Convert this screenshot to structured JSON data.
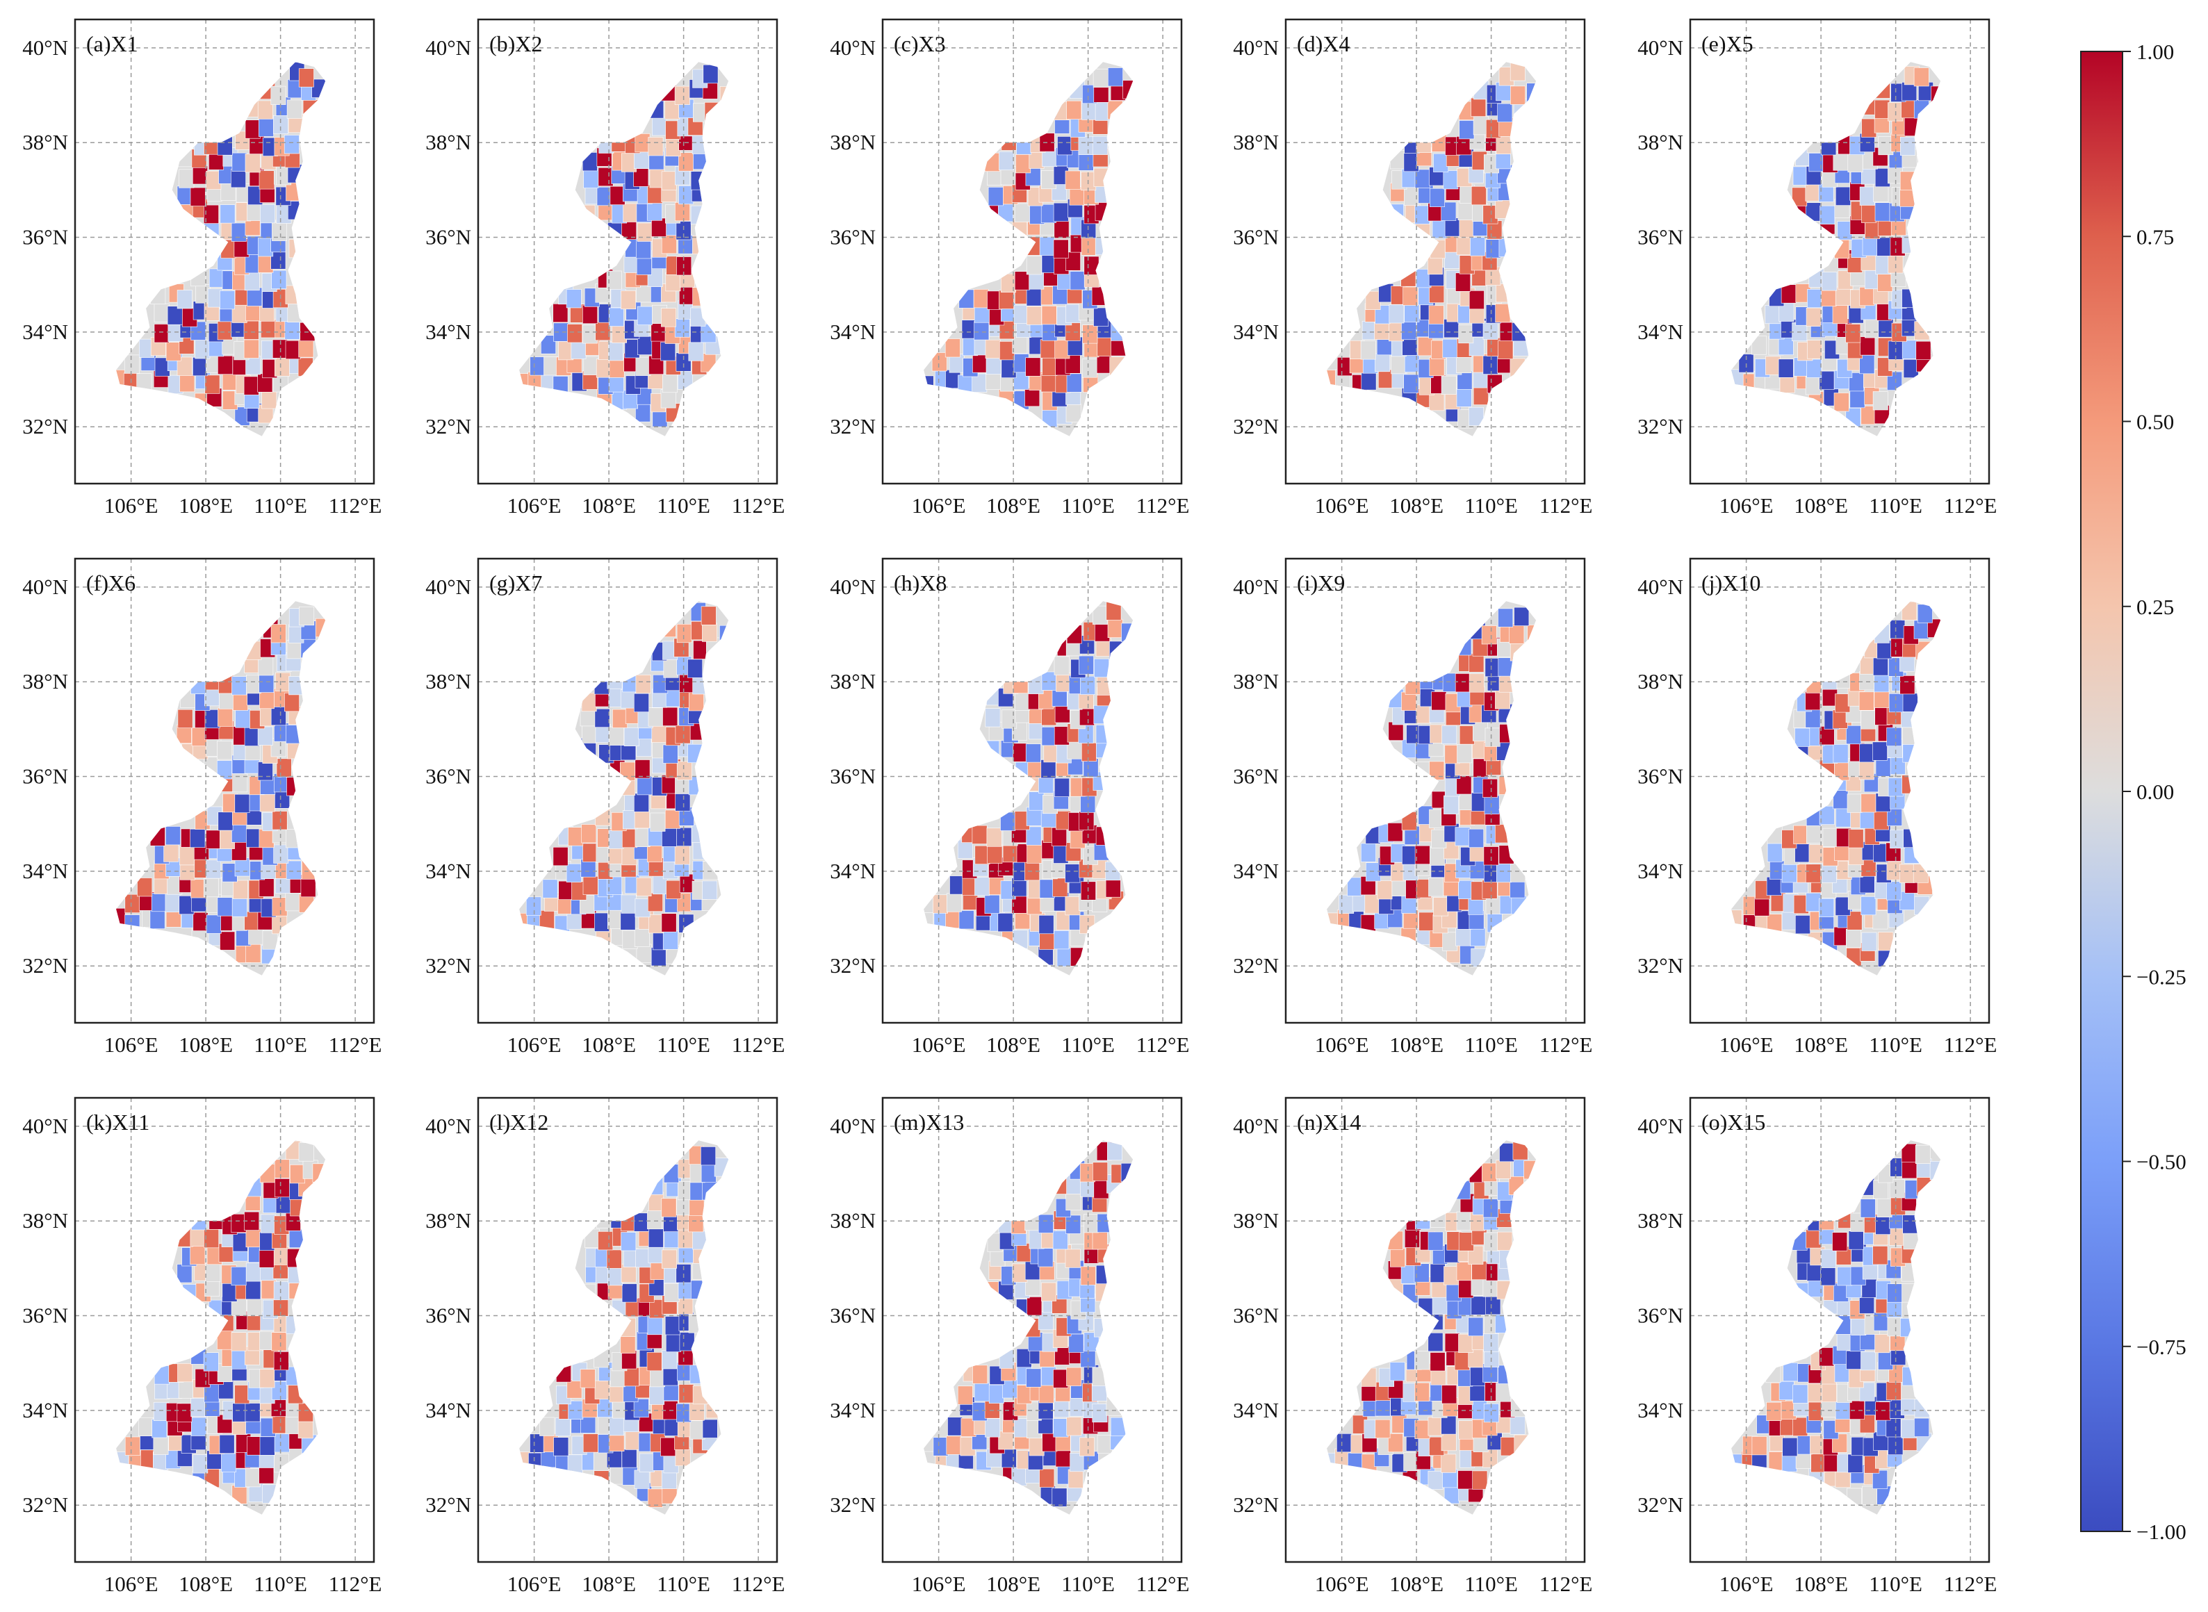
{
  "figure": {
    "panels": [
      {
        "label": "(a)X1",
        "seed": 11
      },
      {
        "label": "(b)X2",
        "seed": 23
      },
      {
        "label": "(c)X3",
        "seed": 37
      },
      {
        "label": "(d)X4",
        "seed": 41
      },
      {
        "label": "(e)X5",
        "seed": 53
      },
      {
        "label": "(f)X6",
        "seed": 67
      },
      {
        "label": "(g)X7",
        "seed": 71
      },
      {
        "label": "(h)X8",
        "seed": 83
      },
      {
        "label": "(i)X9",
        "seed": 97
      },
      {
        "label": "(j)X10",
        "seed": 101
      },
      {
        "label": "(k)X11",
        "seed": 113
      },
      {
        "label": "(l)X12",
        "seed": 127
      },
      {
        "label": "(m)X13",
        "seed": 131
      },
      {
        "label": "(n)X14",
        "seed": 149
      },
      {
        "label": "(o)X15",
        "seed": 157
      }
    ],
    "lon_ticks": [
      "106°E",
      "108°E",
      "110°E",
      "112°E"
    ],
    "lat_ticks": [
      "40°N",
      "38°N",
      "36°N",
      "34°N",
      "32°N"
    ],
    "colorbar": {
      "ticks": [
        "1.00",
        "0.75",
        "0.50",
        "0.25",
        "0.00",
        "−0.25",
        "−0.50",
        "−0.75",
        "−1.00"
      ],
      "range": [
        -1.0,
        1.0
      ],
      "colors": [
        "#3b4cc0",
        "#6788ee",
        "#9abbff",
        "#c9d7f0",
        "#dddddd",
        "#f2cbb7",
        "#f7a789",
        "#e26952",
        "#b40426"
      ]
    }
  },
  "chart_data": {
    "type": "choropleth-map-grid",
    "region": "Shaanxi Province, China (county level)",
    "rows": 3,
    "cols": 5,
    "panel_titles": [
      "(a)X1",
      "(b)X2",
      "(c)X3",
      "(d)X4",
      "(e)X5",
      "(f)X6",
      "(g)X7",
      "(h)X8",
      "(i)X9",
      "(j)X10",
      "(k)X11",
      "(l)X12",
      "(m)X13",
      "(n)X14",
      "(o)X15"
    ],
    "x_axis": {
      "ticks": [
        106,
        108,
        110,
        112
      ],
      "labels": [
        "106°E",
        "108°E",
        "110°E",
        "112°E"
      ],
      "range": [
        104.5,
        112.5
      ]
    },
    "y_axis": {
      "ticks": [
        40,
        38,
        36,
        34,
        32
      ],
      "labels": [
        "40°N",
        "38°N",
        "36°N",
        "34°N",
        "32°N"
      ],
      "range": [
        30.8,
        40.6
      ]
    },
    "grid": true,
    "colorbar": {
      "min": -1.0,
      "max": 1.0,
      "ticks": [
        1.0,
        0.75,
        0.5,
        0.25,
        0.0,
        -0.25,
        -0.5,
        -0.75,
        -1.0
      ],
      "colormap": "coolwarm",
      "placement": "right"
    }
  }
}
